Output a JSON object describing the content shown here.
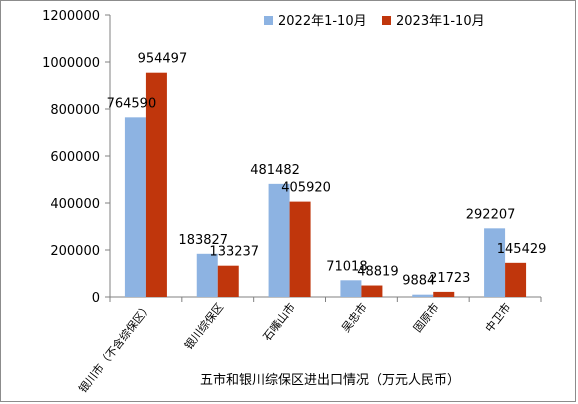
{
  "chart_data": {
    "type": "bar",
    "title": "",
    "xlabel": "五市和银川综保区进出口情况（万元人民币）",
    "ylabel": "",
    "ylim": [
      0,
      1200000
    ],
    "yticks": [
      0,
      200000,
      400000,
      600000,
      800000,
      1000000,
      1200000
    ],
    "categories": [
      "银川市（不含综保区）",
      "银川综保区",
      "石嘴山市",
      "吴忠市",
      "固原市",
      "中卫市"
    ],
    "series": [
      {
        "name": "2022年1-10月",
        "color": "#8db3e2",
        "values": [
          764590,
          183827,
          481482,
          71018,
          9884,
          292207
        ]
      },
      {
        "name": "2023年1-10月",
        "color": "#c0360c",
        "values": [
          954497,
          133237,
          405920,
          48819,
          21723,
          145429
        ]
      }
    ],
    "legend_position": "top-right",
    "grid": false
  }
}
